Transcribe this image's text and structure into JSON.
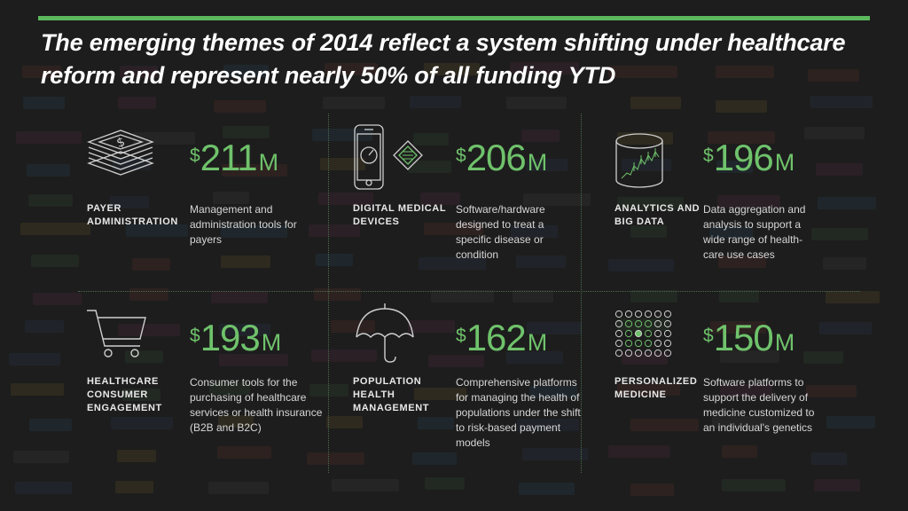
{
  "title": "The emerging themes of 2014 reflect a system shifting under healthcare reform and represent nearly 50% of all funding YTD",
  "colors": {
    "accent": "#5bb85d",
    "amount": "#6fc26b",
    "background": "#1f1f1f"
  },
  "themes": [
    {
      "icon": "stacked-money-icon",
      "currency": "$",
      "value": "211",
      "unit": "M",
      "label": "PAYER ADMINISTRATION",
      "description": "Management and administration tools for payers"
    },
    {
      "icon": "smartphone-chip-icon",
      "currency": "$",
      "value": "206",
      "unit": "M",
      "label": "DIGITAL MEDICAL DEVICES",
      "description": "Software/hardware designed to treat a specific disease or condition"
    },
    {
      "icon": "data-cylinder-icon",
      "currency": "$",
      "value": "196",
      "unit": "M",
      "label": "ANALYTICS AND BIG DATA",
      "description": "Data aggregation and analysis to support a wide range of health-care use cases"
    },
    {
      "icon": "shopping-cart-icon",
      "currency": "$",
      "value": "193",
      "unit": "M",
      "label": "HEALTHCARE CONSUMER ENGAGEMENT",
      "description": "Consumer tools for the purchasing of healthcare services or health insurance (B2B and B2C)"
    },
    {
      "icon": "umbrella-icon",
      "currency": "$",
      "value": "162",
      "unit": "M",
      "label": "POPULATION HEALTH MANAGEMENT",
      "description": "Comprehensive platforms for managing the health of populations under the shift to risk-based payment models"
    },
    {
      "icon": "dot-grid-icon",
      "currency": "$",
      "value": "150",
      "unit": "M",
      "label": "PERSONALIZED MEDICINE",
      "description": "Software platforms to support the delivery of medicine customized to an individual's genetics"
    }
  ]
}
